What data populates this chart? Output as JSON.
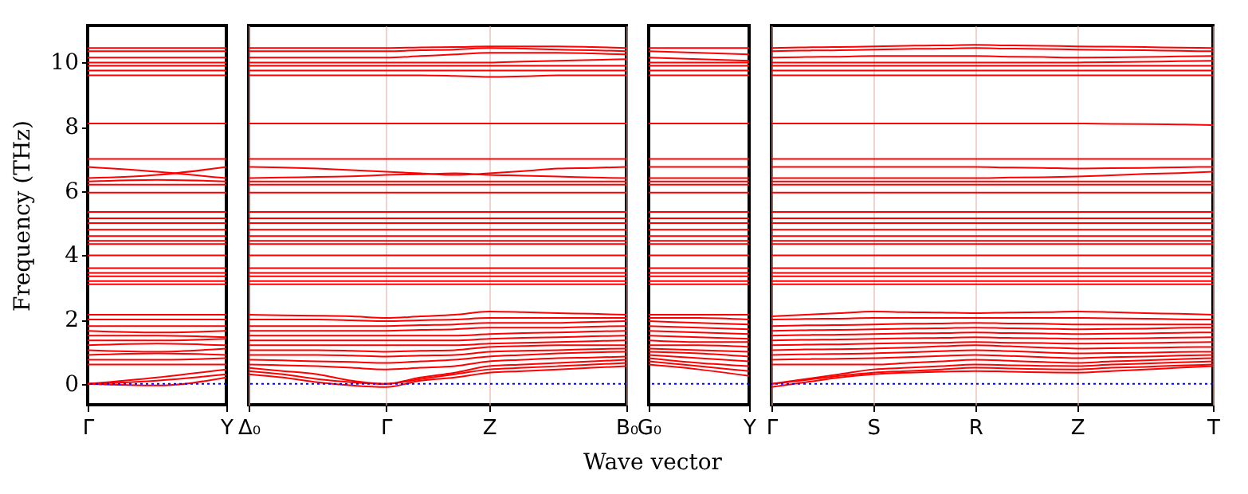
{
  "chart_data": [
    {
      "type": "line",
      "ylabel": "Frequency (THz)",
      "color": "#ff0000",
      "categories": [
        "Γ",
        null,
        "Y"
      ],
      "ylim": [
        -0.65,
        11.15
      ],
      "yticks": [
        0,
        2,
        4,
        6,
        8,
        10
      ],
      "ref_lines": [
        {
          "axis": "y",
          "value": 0,
          "color": "#0000ff",
          "line_style": "dotted"
        }
      ],
      "series": [
        {
          "values": [
            0,
            -0.05,
            0.2
          ]
        },
        {
          "values": [
            0,
            0.1,
            0.3
          ]
        },
        {
          "values": [
            0,
            0.2,
            0.45
          ]
        },
        {
          "values": [
            0.6,
            0.6,
            0.6
          ]
        },
        {
          "values": [
            0.75,
            0.75,
            0.8
          ]
        },
        {
          "values": [
            0.9,
            0.95,
            0.9
          ]
        },
        {
          "values": [
            1.05,
            1.0,
            1.1
          ]
        },
        {
          "values": [
            1.2,
            1.25,
            1.2
          ]
        },
        {
          "values": [
            1.35,
            1.35,
            1.4
          ]
        },
        {
          "values": [
            1.5,
            1.5,
            1.45
          ]
        },
        {
          "values": [
            1.65,
            1.6,
            1.65
          ]
        },
        {
          "values": [
            1.8,
            1.8,
            1.8
          ]
        },
        {
          "values": [
            2.0,
            2.0,
            2.0
          ]
        },
        {
          "values": [
            2.15,
            2.15,
            2.15
          ]
        },
        {
          "values": [
            3.1,
            3.1,
            3.1
          ]
        },
        {
          "values": [
            3.2,
            3.2,
            3.2
          ]
        },
        {
          "values": [
            3.35,
            3.35,
            3.35
          ]
        },
        {
          "values": [
            3.45,
            3.45,
            3.45
          ]
        },
        {
          "values": [
            3.6,
            3.6,
            3.6
          ]
        },
        {
          "values": [
            4.0,
            4.0,
            4.0
          ]
        },
        {
          "values": [
            4.35,
            4.35,
            4.35
          ]
        },
        {
          "values": [
            4.45,
            4.45,
            4.45
          ]
        },
        {
          "values": [
            4.6,
            4.6,
            4.6
          ]
        },
        {
          "values": [
            4.8,
            4.8,
            4.8
          ]
        },
        {
          "values": [
            5.0,
            5.0,
            5.0
          ]
        },
        {
          "values": [
            5.15,
            5.15,
            5.15
          ]
        },
        {
          "values": [
            5.35,
            5.35,
            5.35
          ]
        },
        {
          "values": [
            5.95,
            5.95,
            5.95
          ]
        },
        {
          "values": [
            6.2,
            6.2,
            6.2
          ]
        },
        {
          "values": [
            6.3,
            6.35,
            6.3
          ]
        },
        {
          "values": [
            6.4,
            6.5,
            6.75
          ]
        },
        {
          "values": [
            6.75,
            6.6,
            6.4
          ]
        },
        {
          "values": [
            7.0,
            7.0,
            7.0
          ]
        },
        {
          "values": [
            8.1,
            8.1,
            8.1
          ]
        },
        {
          "values": [
            9.6,
            9.6,
            9.6
          ]
        },
        {
          "values": [
            9.75,
            9.75,
            9.75
          ]
        },
        {
          "values": [
            9.9,
            9.9,
            9.9
          ]
        },
        {
          "values": [
            10.0,
            10.0,
            10.0
          ]
        },
        {
          "values": [
            10.15,
            10.15,
            10.15
          ]
        },
        {
          "values": [
            10.35,
            10.35,
            10.35
          ]
        },
        {
          "values": [
            10.45,
            10.45,
            10.45
          ]
        }
      ]
    },
    {
      "type": "line",
      "color": "#ff0000",
      "grid": "x",
      "tick_labels": "x",
      "categories": [
        "Δ₀",
        null,
        null,
        null,
        "Γ",
        null,
        null,
        "Z",
        null,
        null,
        null,
        "B₀"
      ],
      "ylim": [
        -0.65,
        11.15
      ],
      "yticks": [
        0,
        2,
        4,
        6,
        8,
        10
      ],
      "ref_lines": [
        {
          "axis": "y",
          "value": 0,
          "color": "#0000ff",
          "line_style": "dotted"
        }
      ],
      "series": [
        {
          "values": [
            0.3,
            0.2,
            0.05,
            -0.05,
            -0.1,
            0.1,
            0.2,
            0.35,
            0.4,
            0.45,
            0.5,
            0.55
          ]
        },
        {
          "values": [
            0.4,
            0.3,
            0.15,
            0.05,
            0,
            0.15,
            0.3,
            0.45,
            0.5,
            0.55,
            0.6,
            0.65
          ]
        },
        {
          "values": [
            0.5,
            0.4,
            0.3,
            0.1,
            0,
            0.2,
            0.35,
            0.55,
            0.6,
            0.65,
            0.7,
            0.75
          ]
        },
        {
          "values": [
            0.6,
            0.58,
            0.55,
            0.5,
            0.45,
            0.5,
            0.55,
            0.7,
            0.75,
            0.8,
            0.82,
            0.85
          ]
        },
        {
          "values": [
            0.75,
            0.73,
            0.7,
            0.68,
            0.65,
            0.7,
            0.75,
            0.85,
            0.9,
            0.95,
            0.98,
            1.0
          ]
        },
        {
          "values": [
            0.9,
            0.9,
            0.9,
            0.88,
            0.85,
            0.88,
            0.9,
            1.0,
            1.03,
            1.05,
            1.08,
            1.1
          ]
        },
        {
          "values": [
            1.05,
            1.05,
            1.05,
            1.03,
            1.0,
            1.03,
            1.05,
            1.15,
            1.18,
            1.2,
            1.2,
            1.2
          ]
        },
        {
          "values": [
            1.2,
            1.2,
            1.2,
            1.2,
            1.2,
            1.2,
            1.2,
            1.25,
            1.28,
            1.3,
            1.33,
            1.35
          ]
        },
        {
          "values": [
            1.35,
            1.35,
            1.35,
            1.35,
            1.35,
            1.35,
            1.35,
            1.4,
            1.43,
            1.45,
            1.48,
            1.5
          ]
        },
        {
          "values": [
            1.5,
            1.5,
            1.5,
            1.5,
            1.5,
            1.5,
            1.5,
            1.55,
            1.58,
            1.6,
            1.63,
            1.65
          ]
        },
        {
          "values": [
            1.65,
            1.65,
            1.65,
            1.65,
            1.65,
            1.68,
            1.7,
            1.75,
            1.75,
            1.75,
            1.78,
            1.8
          ]
        },
        {
          "values": [
            1.8,
            1.8,
            1.8,
            1.8,
            1.8,
            1.83,
            1.85,
            1.9,
            1.9,
            1.9,
            1.93,
            1.95
          ]
        },
        {
          "values": [
            2.0,
            2.0,
            2.0,
            1.98,
            1.95,
            1.98,
            2.0,
            2.05,
            2.05,
            2.05,
            2.05,
            2.05
          ]
        },
        {
          "values": [
            2.15,
            2.13,
            2.12,
            2.1,
            2.05,
            2.1,
            2.15,
            2.25,
            2.23,
            2.2,
            2.18,
            2.15
          ]
        },
        {
          "values": [
            3.1,
            3.1,
            3.1,
            3.1,
            3.1,
            3.1,
            3.1,
            3.1,
            3.1,
            3.1,
            3.1,
            3.1
          ]
        },
        {
          "values": [
            3.2,
            3.2,
            3.2,
            3.2,
            3.2,
            3.2,
            3.2,
            3.2,
            3.2,
            3.2,
            3.2,
            3.2
          ]
        },
        {
          "values": [
            3.35,
            3.35,
            3.35,
            3.35,
            3.35,
            3.35,
            3.35,
            3.35,
            3.35,
            3.35,
            3.35,
            3.35
          ]
        },
        {
          "values": [
            3.45,
            3.45,
            3.45,
            3.45,
            3.45,
            3.45,
            3.45,
            3.45,
            3.45,
            3.45,
            3.45,
            3.45
          ]
        },
        {
          "values": [
            3.6,
            3.6,
            3.6,
            3.6,
            3.6,
            3.6,
            3.6,
            3.6,
            3.6,
            3.6,
            3.6,
            3.6
          ]
        },
        {
          "values": [
            4.0,
            4.0,
            4.0,
            4.0,
            4.0,
            4.0,
            4.0,
            4.0,
            4.0,
            4.0,
            4.0,
            4.0
          ]
        },
        {
          "values": [
            4.35,
            4.35,
            4.35,
            4.35,
            4.35,
            4.35,
            4.35,
            4.35,
            4.35,
            4.35,
            4.35,
            4.35
          ]
        },
        {
          "values": [
            4.45,
            4.45,
            4.45,
            4.45,
            4.45,
            4.45,
            4.45,
            4.45,
            4.45,
            4.45,
            4.45,
            4.45
          ]
        },
        {
          "values": [
            4.6,
            4.6,
            4.6,
            4.6,
            4.6,
            4.6,
            4.6,
            4.6,
            4.6,
            4.6,
            4.6,
            4.6
          ]
        },
        {
          "values": [
            4.8,
            4.8,
            4.8,
            4.8,
            4.8,
            4.8,
            4.8,
            4.8,
            4.8,
            4.8,
            4.8,
            4.8
          ]
        },
        {
          "values": [
            5.0,
            5.0,
            5.0,
            5.0,
            5.0,
            5.0,
            5.0,
            5.0,
            5.0,
            5.0,
            5.0,
            5.0
          ]
        },
        {
          "values": [
            5.15,
            5.15,
            5.15,
            5.15,
            5.15,
            5.15,
            5.15,
            5.15,
            5.15,
            5.15,
            5.15,
            5.15
          ]
        },
        {
          "values": [
            5.35,
            5.35,
            5.35,
            5.35,
            5.35,
            5.35,
            5.35,
            5.35,
            5.35,
            5.35,
            5.35,
            5.35
          ]
        },
        {
          "values": [
            5.95,
            5.95,
            5.95,
            5.95,
            5.95,
            5.95,
            5.95,
            5.95,
            5.95,
            5.95,
            5.95,
            5.95
          ]
        },
        {
          "values": [
            6.2,
            6.2,
            6.2,
            6.2,
            6.2,
            6.2,
            6.2,
            6.2,
            6.2,
            6.2,
            6.2,
            6.2
          ]
        },
        {
          "values": [
            6.3,
            6.3,
            6.3,
            6.3,
            6.3,
            6.3,
            6.3,
            6.3,
            6.3,
            6.3,
            6.3,
            6.3
          ]
        },
        {
          "values": [
            6.4,
            6.42,
            6.44,
            6.46,
            6.5,
            6.52,
            6.55,
            6.5,
            6.48,
            6.45,
            6.42,
            6.4
          ]
        },
        {
          "values": [
            6.75,
            6.73,
            6.7,
            6.65,
            6.6,
            6.55,
            6.5,
            6.55,
            6.62,
            6.7,
            6.72,
            6.75
          ]
        },
        {
          "values": [
            7.0,
            7.0,
            7.0,
            7.0,
            7.0,
            7.0,
            7.0,
            7.0,
            7.0,
            7.0,
            7.0,
            7.0
          ]
        },
        {
          "values": [
            8.1,
            8.1,
            8.1,
            8.1,
            8.1,
            8.1,
            8.1,
            8.1,
            8.1,
            8.1,
            8.1,
            8.1
          ]
        },
        {
          "values": [
            9.6,
            9.6,
            9.6,
            9.6,
            9.6,
            9.6,
            9.58,
            9.55,
            9.57,
            9.6,
            9.6,
            9.6
          ]
        },
        {
          "values": [
            9.75,
            9.75,
            9.75,
            9.75,
            9.75,
            9.75,
            9.75,
            9.75,
            9.75,
            9.75,
            9.75,
            9.75
          ]
        },
        {
          "values": [
            9.9,
            9.9,
            9.9,
            9.9,
            9.9,
            9.9,
            9.9,
            9.9,
            9.9,
            9.9,
            9.9,
            9.9
          ]
        },
        {
          "values": [
            10.0,
            10.0,
            10.0,
            10.0,
            10.0,
            10.0,
            10.0,
            10.0,
            10.03,
            10.05,
            10.08,
            10.1
          ]
        },
        {
          "values": [
            10.15,
            10.15,
            10.15,
            10.15,
            10.15,
            10.2,
            10.25,
            10.3,
            10.3,
            10.3,
            10.28,
            10.25
          ]
        },
        {
          "values": [
            10.35,
            10.35,
            10.35,
            10.35,
            10.35,
            10.38,
            10.4,
            10.45,
            10.43,
            10.4,
            10.38,
            10.35
          ]
        },
        {
          "values": [
            10.45,
            10.45,
            10.45,
            10.45,
            10.45,
            10.47,
            10.48,
            10.5,
            10.5,
            10.5,
            10.48,
            10.45
          ]
        }
      ]
    },
    {
      "type": "line",
      "color": "#ff0000",
      "tick_labels": "x",
      "xlabel": "Wave vector",
      "categories": [
        "G₀",
        null,
        "Y"
      ],
      "ylim": [
        -0.65,
        11.15
      ],
      "yticks": [
        0,
        2,
        4,
        6,
        8,
        10
      ],
      "ref_lines": [
        {
          "axis": "y",
          "value": 0,
          "color": "#0000ff",
          "line_style": "dotted"
        }
      ],
      "series": [
        {
          "values": [
            0.6,
            0.45,
            0.25
          ]
        },
        {
          "values": [
            0.7,
            0.55,
            0.4
          ]
        },
        {
          "values": [
            0.8,
            0.65,
            0.55
          ]
        },
        {
          "values": [
            0.9,
            0.8,
            0.7
          ]
        },
        {
          "values": [
            1.0,
            0.95,
            0.85
          ]
        },
        {
          "values": [
            1.1,
            1.05,
            1.0
          ]
        },
        {
          "values": [
            1.2,
            1.2,
            1.15
          ]
        },
        {
          "values": [
            1.35,
            1.3,
            1.3
          ]
        },
        {
          "values": [
            1.5,
            1.45,
            1.4
          ]
        },
        {
          "values": [
            1.65,
            1.6,
            1.55
          ]
        },
        {
          "values": [
            1.8,
            1.75,
            1.7
          ]
        },
        {
          "values": [
            1.95,
            1.9,
            1.85
          ]
        },
        {
          "values": [
            2.05,
            2.05,
            2.0
          ]
        },
        {
          "values": [
            2.15,
            2.15,
            2.15
          ]
        },
        {
          "values": [
            3.1,
            3.1,
            3.1
          ]
        },
        {
          "values": [
            3.2,
            3.2,
            3.2
          ]
        },
        {
          "values": [
            3.35,
            3.35,
            3.35
          ]
        },
        {
          "values": [
            3.45,
            3.45,
            3.45
          ]
        },
        {
          "values": [
            3.6,
            3.6,
            3.6
          ]
        },
        {
          "values": [
            4.0,
            4.0,
            4.0
          ]
        },
        {
          "values": [
            4.35,
            4.35,
            4.35
          ]
        },
        {
          "values": [
            4.45,
            4.45,
            4.45
          ]
        },
        {
          "values": [
            4.6,
            4.6,
            4.6
          ]
        },
        {
          "values": [
            4.8,
            4.8,
            4.8
          ]
        },
        {
          "values": [
            5.0,
            5.0,
            5.0
          ]
        },
        {
          "values": [
            5.15,
            5.15,
            5.15
          ]
        },
        {
          "values": [
            5.35,
            5.35,
            5.35
          ]
        },
        {
          "values": [
            5.95,
            5.95,
            5.95
          ]
        },
        {
          "values": [
            6.2,
            6.2,
            6.2
          ]
        },
        {
          "values": [
            6.3,
            6.3,
            6.3
          ]
        },
        {
          "values": [
            6.4,
            6.4,
            6.4
          ]
        },
        {
          "values": [
            6.75,
            6.75,
            6.75
          ]
        },
        {
          "values": [
            7.0,
            7.0,
            7.0
          ]
        },
        {
          "values": [
            8.1,
            8.1,
            8.1
          ]
        },
        {
          "values": [
            9.6,
            9.6,
            9.6
          ]
        },
        {
          "values": [
            9.75,
            9.75,
            9.75
          ]
        },
        {
          "values": [
            9.9,
            9.9,
            9.9
          ]
        },
        {
          "values": [
            10.0,
            10.0,
            10.0
          ]
        },
        {
          "values": [
            10.15,
            10.1,
            10.05
          ]
        },
        {
          "values": [
            10.35,
            10.3,
            10.25
          ]
        },
        {
          "values": [
            10.45,
            10.45,
            10.45
          ]
        }
      ]
    },
    {
      "type": "line",
      "color": "#ff0000",
      "grid": "x",
      "tick_labels": "x",
      "categories": [
        "Γ",
        null,
        null,
        "S",
        null,
        null,
        "R",
        null,
        null,
        "Z",
        null,
        null,
        null,
        "T"
      ],
      "ylim": [
        -0.65,
        11.15
      ],
      "yticks": [
        0,
        2,
        4,
        6,
        8,
        10
      ],
      "ref_lines": [
        {
          "axis": "y",
          "value": 0,
          "color": "#0000ff",
          "line_style": "dotted"
        }
      ],
      "series": [
        {
          "values": [
            -0.1,
            0.05,
            0.2,
            0.3,
            0.35,
            0.38,
            0.4,
            0.38,
            0.36,
            0.35,
            0.4,
            0.45,
            0.5,
            0.55
          ]
        },
        {
          "values": [
            0,
            0.12,
            0.25,
            0.35,
            0.4,
            0.45,
            0.5,
            0.48,
            0.46,
            0.45,
            0.5,
            0.53,
            0.57,
            0.6
          ]
        },
        {
          "values": [
            0,
            0.15,
            0.3,
            0.45,
            0.5,
            0.55,
            0.6,
            0.58,
            0.56,
            0.55,
            0.6,
            0.63,
            0.67,
            0.7
          ]
        },
        {
          "values": [
            0.6,
            0.6,
            0.6,
            0.6,
            0.65,
            0.7,
            0.75,
            0.72,
            0.68,
            0.65,
            0.7,
            0.73,
            0.77,
            0.8
          ]
        },
        {
          "values": [
            0.75,
            0.77,
            0.78,
            0.8,
            0.83,
            0.87,
            0.9,
            0.87,
            0.83,
            0.8,
            0.83,
            0.85,
            0.88,
            0.9
          ]
        },
        {
          "values": [
            0.9,
            0.92,
            0.93,
            0.95,
            0.98,
            1.02,
            1.05,
            1.02,
            0.98,
            0.95,
            0.96,
            0.97,
            0.99,
            1.0
          ]
        },
        {
          "values": [
            1.05,
            1.07,
            1.08,
            1.1,
            1.13,
            1.17,
            1.2,
            1.17,
            1.13,
            1.1,
            1.11,
            1.12,
            1.14,
            1.15
          ]
        },
        {
          "values": [
            1.2,
            1.22,
            1.23,
            1.25,
            1.27,
            1.28,
            1.3,
            1.28,
            1.27,
            1.25,
            1.26,
            1.27,
            1.29,
            1.3
          ]
        },
        {
          "values": [
            1.35,
            1.37,
            1.38,
            1.4,
            1.42,
            1.43,
            1.45,
            1.43,
            1.42,
            1.4,
            1.41,
            1.42,
            1.44,
            1.45
          ]
        },
        {
          "values": [
            1.5,
            1.52,
            1.53,
            1.55,
            1.57,
            1.58,
            1.6,
            1.58,
            1.57,
            1.55,
            1.56,
            1.57,
            1.59,
            1.6
          ]
        },
        {
          "values": [
            1.65,
            1.67,
            1.68,
            1.7,
            1.72,
            1.73,
            1.75,
            1.73,
            1.72,
            1.7,
            1.71,
            1.72,
            1.74,
            1.75
          ]
        },
        {
          "values": [
            1.8,
            1.82,
            1.83,
            1.85,
            1.87,
            1.88,
            1.9,
            1.88,
            1.87,
            1.85,
            1.85,
            1.85,
            1.85,
            1.85
          ]
        },
        {
          "values": [
            2.0,
            2.02,
            2.03,
            2.05,
            2.05,
            2.05,
            2.05,
            2.05,
            2.05,
            2.05,
            2.04,
            2.03,
            2.01,
            2.0
          ]
        },
        {
          "values": [
            2.1,
            2.15,
            2.2,
            2.25,
            2.23,
            2.22,
            2.2,
            2.22,
            2.23,
            2.25,
            2.23,
            2.2,
            2.18,
            2.15
          ]
        },
        {
          "values": [
            3.1,
            3.1,
            3.1,
            3.1,
            3.1,
            3.1,
            3.1,
            3.1,
            3.1,
            3.1,
            3.1,
            3.1,
            3.1,
            3.1
          ]
        },
        {
          "values": [
            3.2,
            3.2,
            3.2,
            3.2,
            3.2,
            3.2,
            3.2,
            3.2,
            3.2,
            3.2,
            3.2,
            3.2,
            3.2,
            3.2
          ]
        },
        {
          "values": [
            3.35,
            3.35,
            3.35,
            3.35,
            3.35,
            3.35,
            3.35,
            3.35,
            3.35,
            3.35,
            3.35,
            3.35,
            3.35,
            3.35
          ]
        },
        {
          "values": [
            3.45,
            3.45,
            3.45,
            3.45,
            3.45,
            3.45,
            3.45,
            3.45,
            3.45,
            3.45,
            3.45,
            3.45,
            3.45,
            3.45
          ]
        },
        {
          "values": [
            3.6,
            3.6,
            3.6,
            3.6,
            3.6,
            3.6,
            3.6,
            3.6,
            3.6,
            3.6,
            3.6,
            3.6,
            3.6,
            3.6
          ]
        },
        {
          "values": [
            4.0,
            4.0,
            4.0,
            4.0,
            4.0,
            4.0,
            4.0,
            4.0,
            4.0,
            4.0,
            4.0,
            4.0,
            4.0,
            4.0
          ]
        },
        {
          "values": [
            4.35,
            4.35,
            4.35,
            4.35,
            4.35,
            4.35,
            4.35,
            4.35,
            4.35,
            4.35,
            4.35,
            4.35,
            4.35,
            4.35
          ]
        },
        {
          "values": [
            4.45,
            4.45,
            4.45,
            4.45,
            4.45,
            4.45,
            4.45,
            4.45,
            4.45,
            4.45,
            4.45,
            4.45,
            4.45,
            4.45
          ]
        },
        {
          "values": [
            4.6,
            4.6,
            4.6,
            4.6,
            4.6,
            4.6,
            4.6,
            4.6,
            4.6,
            4.6,
            4.6,
            4.6,
            4.6,
            4.6
          ]
        },
        {
          "values": [
            4.8,
            4.8,
            4.8,
            4.8,
            4.8,
            4.8,
            4.8,
            4.8,
            4.8,
            4.8,
            4.8,
            4.8,
            4.8,
            4.8
          ]
        },
        {
          "values": [
            5.0,
            5.0,
            5.0,
            5.0,
            5.0,
            5.0,
            5.0,
            5.0,
            5.0,
            5.0,
            5.0,
            5.0,
            5.0,
            5.0
          ]
        },
        {
          "values": [
            5.15,
            5.15,
            5.15,
            5.15,
            5.15,
            5.15,
            5.15,
            5.15,
            5.15,
            5.15,
            5.15,
            5.15,
            5.15,
            5.15
          ]
        },
        {
          "values": [
            5.35,
            5.35,
            5.35,
            5.35,
            5.35,
            5.35,
            5.35,
            5.35,
            5.35,
            5.35,
            5.35,
            5.35,
            5.35,
            5.35
          ]
        },
        {
          "values": [
            5.95,
            5.95,
            5.95,
            5.95,
            5.95,
            5.95,
            5.95,
            5.95,
            5.95,
            5.95,
            5.95,
            5.95,
            5.95,
            5.95
          ]
        },
        {
          "values": [
            6.2,
            6.2,
            6.2,
            6.2,
            6.2,
            6.2,
            6.2,
            6.2,
            6.2,
            6.2,
            6.2,
            6.2,
            6.2,
            6.2
          ]
        },
        {
          "values": [
            6.3,
            6.3,
            6.3,
            6.3,
            6.3,
            6.3,
            6.3,
            6.3,
            6.3,
            6.3,
            6.3,
            6.3,
            6.3,
            6.3
          ]
        },
        {
          "values": [
            6.4,
            6.4,
            6.4,
            6.4,
            6.4,
            6.4,
            6.4,
            6.42,
            6.43,
            6.45,
            6.49,
            6.53,
            6.56,
            6.6
          ]
        },
        {
          "values": [
            6.75,
            6.75,
            6.75,
            6.75,
            6.75,
            6.75,
            6.75,
            6.73,
            6.72,
            6.7,
            6.71,
            6.72,
            6.74,
            6.75
          ]
        },
        {
          "values": [
            7.0,
            7.0,
            7.0,
            7.0,
            7.0,
            7.0,
            7.0,
            7.0,
            7.0,
            7.0,
            7.0,
            7.0,
            7.0,
            7.0
          ]
        },
        {
          "values": [
            8.1,
            8.1,
            8.1,
            8.1,
            8.1,
            8.1,
            8.1,
            8.1,
            8.1,
            8.1,
            8.09,
            8.08,
            8.07,
            8.05
          ]
        },
        {
          "values": [
            9.6,
            9.6,
            9.6,
            9.6,
            9.6,
            9.6,
            9.6,
            9.6,
            9.6,
            9.6,
            9.6,
            9.6,
            9.6,
            9.6
          ]
        },
        {
          "values": [
            9.75,
            9.75,
            9.75,
            9.75,
            9.75,
            9.75,
            9.75,
            9.75,
            9.75,
            9.75,
            9.75,
            9.75,
            9.75,
            9.75
          ]
        },
        {
          "values": [
            9.9,
            9.9,
            9.9,
            9.9,
            9.9,
            9.9,
            9.9,
            9.9,
            9.9,
            9.9,
            9.9,
            9.9,
            9.9,
            9.9
          ]
        },
        {
          "values": [
            10.0,
            10.0,
            10.0,
            10.0,
            10.0,
            10.0,
            10.0,
            10.0,
            10.0,
            10.0,
            10.01,
            10.02,
            10.04,
            10.05
          ]
        },
        {
          "values": [
            10.15,
            10.17,
            10.18,
            10.2,
            10.2,
            10.2,
            10.2,
            10.18,
            10.17,
            10.15,
            10.16,
            10.17,
            10.19,
            10.2
          ]
        },
        {
          "values": [
            10.35,
            10.37,
            10.38,
            10.4,
            10.42,
            10.43,
            10.45,
            10.43,
            10.42,
            10.4,
            10.39,
            10.38,
            10.36,
            10.35
          ]
        },
        {
          "values": [
            10.45,
            10.47,
            10.48,
            10.5,
            10.52,
            10.53,
            10.55,
            10.53,
            10.52,
            10.5,
            10.49,
            10.48,
            10.46,
            10.45
          ]
        }
      ]
    }
  ]
}
